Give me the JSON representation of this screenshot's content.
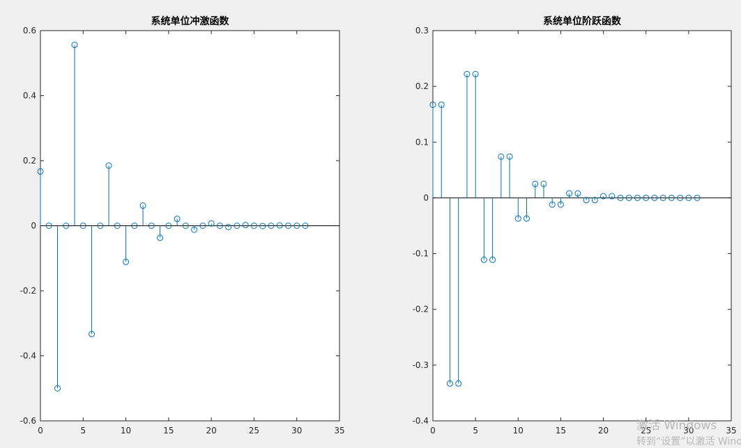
{
  "chart_data": [
    {
      "type": "stem",
      "title": "系统单位冲激函数",
      "color": "#0072bd",
      "x": [
        0,
        1,
        2,
        3,
        4,
        5,
        6,
        7,
        8,
        9,
        10,
        11,
        12,
        13,
        14,
        15,
        16,
        17,
        18,
        19,
        20,
        21,
        22,
        23,
        24,
        25,
        26,
        27,
        28,
        29,
        30,
        31
      ],
      "values": [
        0.167,
        0,
        -0.5,
        0,
        0.556,
        0,
        -0.333,
        0,
        0.185,
        0,
        -0.111,
        0,
        0.062,
        0,
        -0.037,
        0,
        0.021,
        0,
        -0.012,
        0,
        0.007,
        0,
        -0.004,
        0,
        0.002,
        0,
        -0.001,
        0,
        0.001,
        0,
        0,
        0
      ],
      "xlim": [
        0,
        35
      ],
      "xticks": [
        0,
        5,
        10,
        15,
        20,
        25,
        30,
        35
      ],
      "ylim": [
        -0.6,
        0.6
      ],
      "yticks": [
        -0.6,
        -0.4,
        -0.2,
        0,
        0.2,
        0.4,
        0.6
      ]
    },
    {
      "type": "stem",
      "title": "系统单位阶跃函数",
      "color": "#0072bd",
      "x": [
        0,
        1,
        2,
        3,
        4,
        5,
        6,
        7,
        8,
        9,
        10,
        11,
        12,
        13,
        14,
        15,
        16,
        17,
        18,
        19,
        20,
        21,
        22,
        23,
        24,
        25,
        26,
        27,
        28,
        29,
        30,
        31
      ],
      "values": [
        0.167,
        0.167,
        -0.333,
        -0.333,
        0.222,
        0.222,
        -0.111,
        -0.111,
        0.074,
        0.074,
        -0.037,
        -0.037,
        0.025,
        0.025,
        -0.012,
        -0.012,
        0.008,
        0.008,
        -0.004,
        -0.004,
        0.003,
        0.003,
        0,
        0,
        0,
        0,
        0,
        0,
        0,
        0,
        0,
        0
      ],
      "xlim": [
        0,
        35
      ],
      "xticks": [
        0,
        5,
        10,
        15,
        20,
        25,
        30,
        35
      ],
      "ylim": [
        -0.4,
        0.3
      ],
      "yticks": [
        -0.4,
        -0.3,
        -0.2,
        -0.1,
        0,
        0.1,
        0.2,
        0.3
      ]
    }
  ],
  "watermark": {
    "line1": "激活 Windows",
    "line2": "转到“设置”以激活 Windows"
  }
}
